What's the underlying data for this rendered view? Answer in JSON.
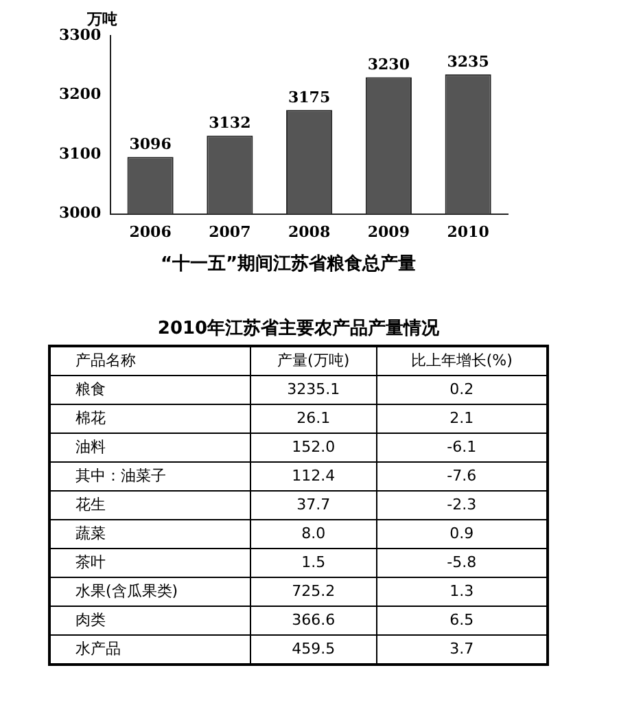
{
  "chart_data": [
    {
      "type": "bar",
      "title": "“十一五”期间江苏省粮食总产量",
      "ylabel": "万吨",
      "categories": [
        "2006",
        "2007",
        "2008",
        "2009",
        "2010"
      ],
      "values": [
        3096,
        3132,
        3175,
        3230,
        3235
      ],
      "color": "#555555",
      "ylim": [
        3000,
        3300
      ],
      "yticks": [
        3000,
        3100,
        3200,
        3300
      ],
      "grid": false,
      "legend": false,
      "data_labels": true
    },
    {
      "type": "other",
      "title": "2010年江苏省主要农产品产量情况",
      "annotations": [
        "产品名称",
        "产量(万吨)",
        "比上年增长(%)",
        "粮食",
        "3235.1",
        "0.2",
        "棉花",
        "26.1",
        "2.1",
        "油料",
        "152.0",
        "-6.1",
        "其中：油菜子",
        "112.4",
        "-7.6",
        "花生",
        "37.7",
        "-2.3",
        "蔬菜",
        "8.0",
        "0.9",
        "茶叶",
        "1.5",
        "-5.8",
        "水果(含瓜果类)",
        "725.2",
        "1.3",
        "肉类",
        "366.6",
        "6.5",
        "水产品",
        "459.5",
        "3.7"
      ]
    }
  ]
}
